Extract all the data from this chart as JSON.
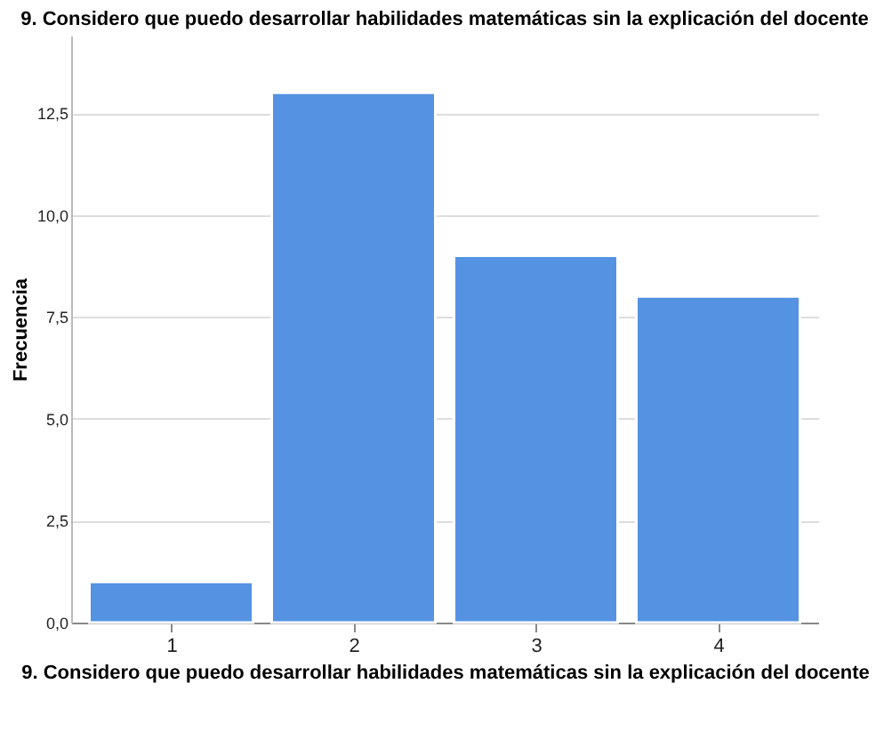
{
  "chart_data": {
    "type": "bar",
    "title": "9. Considero que puedo desarrollar habilidades matemáticas sin la explicación del docente",
    "xlabel": "9. Considero que puedo desarrollar habilidades matemáticas sin la explicación del docente",
    "ylabel": "Frecuencia",
    "categories": [
      "1",
      "2",
      "3",
      "4"
    ],
    "values": [
      1,
      13,
      9,
      8
    ],
    "color": "#5592e2",
    "ylim": [
      0,
      14.4
    ],
    "yticks": [
      {
        "value": 0,
        "label": "0,0"
      },
      {
        "value": 2.5,
        "label": "2,5"
      },
      {
        "value": 5,
        "label": "5,0"
      },
      {
        "value": 7.5,
        "label": "7,5"
      },
      {
        "value": 10,
        "label": "10,0"
      },
      {
        "value": 12.5,
        "label": "12,5"
      }
    ],
    "grid": "y"
  }
}
